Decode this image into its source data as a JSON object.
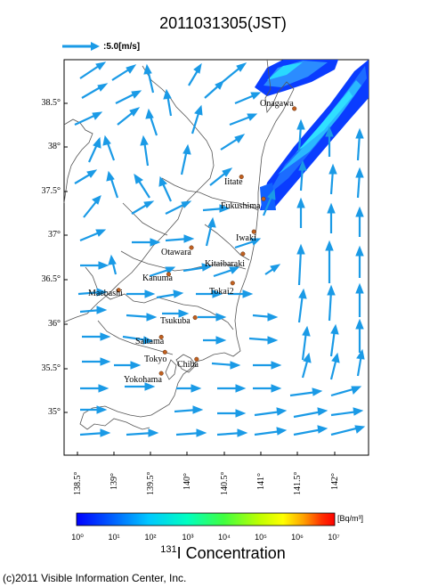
{
  "title": "2011031305(JST)",
  "scale_arrow_label": ":5.0[m/s]",
  "lat_labels": [
    "38.5°",
    "38°",
    "37.5°",
    "37°",
    "36.5°",
    "36°",
    "35.5°",
    "35°"
  ],
  "lon_labels": [
    "138.5°",
    "139°",
    "139.5°",
    "140°",
    "140.5°",
    "141°",
    "141.5°",
    "142°"
  ],
  "cities": [
    {
      "name": "Onagawa",
      "lon": 141.45,
      "lat": 38.44
    },
    {
      "name": "Iitate",
      "lon": 140.73,
      "lat": 37.67
    },
    {
      "name": "Fukushima",
      "lon": 141.03,
      "lat": 37.42
    },
    {
      "name": "Iwaki",
      "lon": 140.9,
      "lat": 37.05
    },
    {
      "name": "Otawara",
      "lon": 140.05,
      "lat": 36.87
    },
    {
      "name": "Kitaibaraki",
      "lon": 140.75,
      "lat": 36.8
    },
    {
      "name": "Kanuma",
      "lon": 139.74,
      "lat": 36.57
    },
    {
      "name": "Tokai2",
      "lon": 140.61,
      "lat": 36.47
    },
    {
      "name": "Maebashi",
      "lon": 139.06,
      "lat": 36.39
    },
    {
      "name": "Tsukuba",
      "lon": 140.1,
      "lat": 36.08
    },
    {
      "name": "Saitama",
      "lon": 139.64,
      "lat": 35.86
    },
    {
      "name": "Tokyo",
      "lon": 139.69,
      "lat": 35.69
    },
    {
      "name": "Chiba",
      "lon": 140.12,
      "lat": 35.61
    },
    {
      "name": "Yokohama",
      "lon": 139.64,
      "lat": 35.45
    }
  ],
  "colorbar": {
    "unit": "[Bq/m³]",
    "ticks": [
      "10⁰",
      "10¹",
      "10²",
      "10³",
      "10⁴",
      "10⁵",
      "10⁶",
      "10⁷"
    ],
    "title_isotope": "131",
    "title_text": "I Concentration",
    "colors": [
      "#0000ff",
      "#0060ff",
      "#00c8ff",
      "#00ffc0",
      "#40ff40",
      "#c0ff00",
      "#ffff00",
      "#ffa000",
      "#ff3000",
      "#ff0000"
    ]
  },
  "copyright": "(c)2011 Visible Information Center, Inc."
}
